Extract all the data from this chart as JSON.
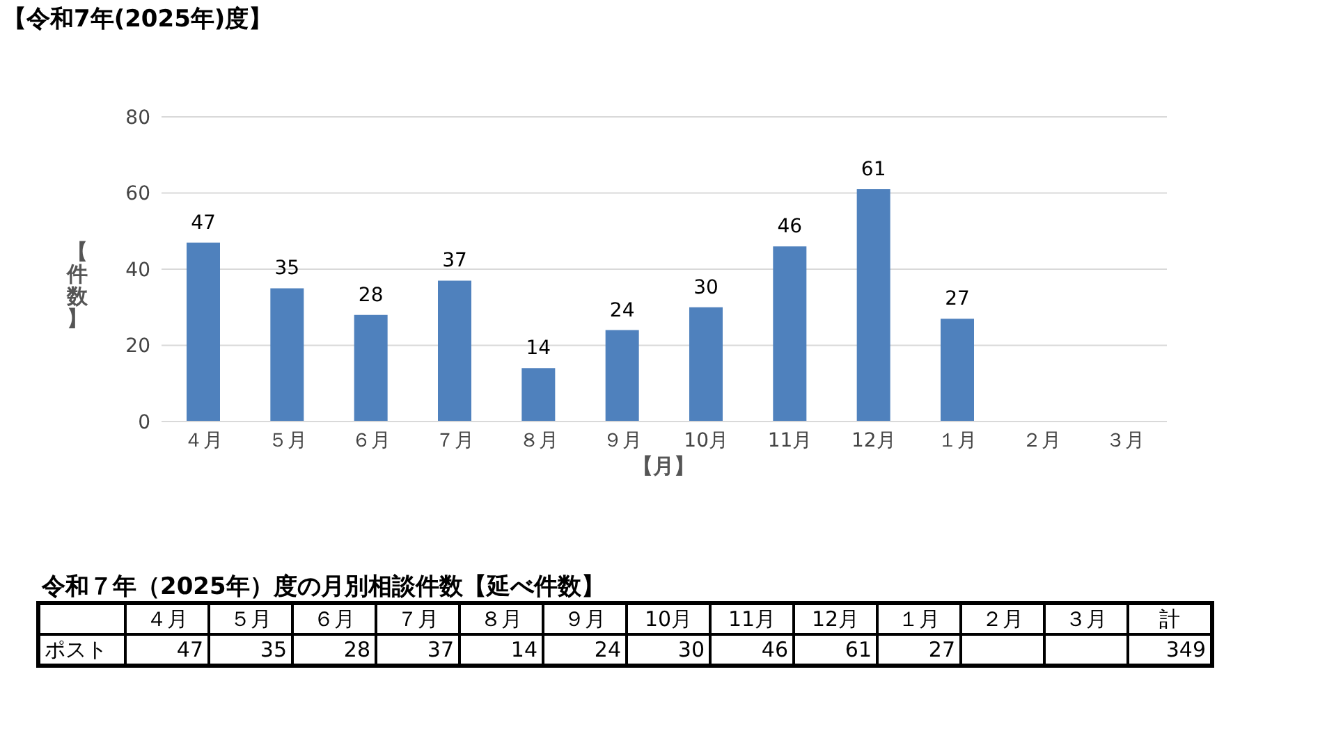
{
  "chart_data": {
    "type": "bar",
    "title": "【令和7年(2025年)度】",
    "xlabel": "【月】",
    "ylabel": "【件数】",
    "categories": [
      "４月",
      "５月",
      "６月",
      "７月",
      "８月",
      "９月",
      "10月",
      "11月",
      "12月",
      "１月",
      "２月",
      "３月"
    ],
    "series": [
      {
        "name": "ポスト",
        "color": "#4f81bd",
        "values": [
          47,
          35,
          28,
          37,
          14,
          24,
          30,
          46,
          61,
          27,
          null,
          null
        ]
      }
    ],
    "ylim": [
      0,
      80
    ],
    "yticks": [
      0,
      20,
      40,
      60,
      80
    ],
    "grid": "y",
    "data_labels": true,
    "legend": false,
    "annotations": [
      "令和７年（2025年）度の月別相談件数【延べ件数】",
      "計",
      "349",
      "47",
      "35",
      "28",
      "37",
      "14",
      "24",
      "30",
      "46",
      "61",
      "27"
    ]
  }
}
